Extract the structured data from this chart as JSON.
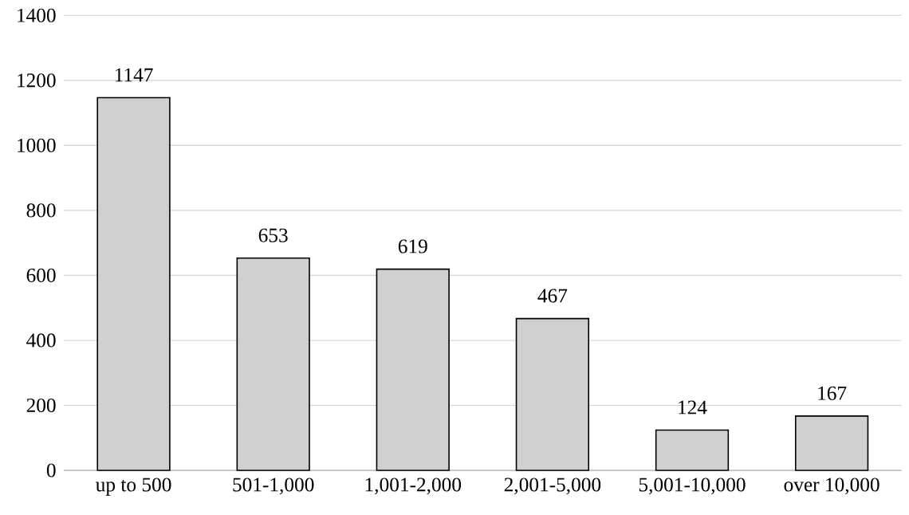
{
  "chart_data": {
    "type": "bar",
    "categories": [
      "up to 500",
      "501-1,000",
      "1,001-2,000",
      "2,001-5,000",
      "5,001-10,000",
      "over 10,000"
    ],
    "values": [
      1147,
      653,
      619,
      467,
      124,
      167
    ],
    "color": "#d0d0d0",
    "ylim": [
      0,
      1400
    ],
    "yticks": [
      0,
      200,
      400,
      600,
      800,
      1000,
      1200,
      1400
    ],
    "grid": "y",
    "data_labels": true
  }
}
